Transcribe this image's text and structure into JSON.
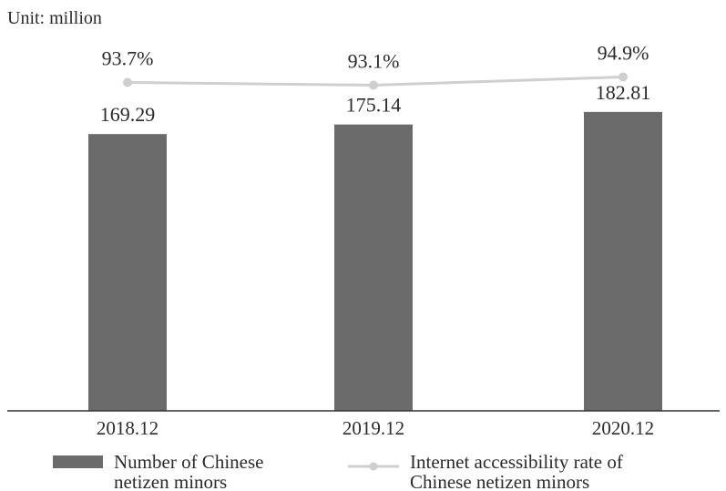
{
  "chart_data": {
    "type": "bar",
    "unit_label": "Unit: million",
    "categories": [
      "2018.12",
      "2019.12",
      "2020.12"
    ],
    "series": [
      {
        "name": "Number of Chinese netizen minors",
        "legend_lines": [
          "Number of Chinese",
          "netizen minors"
        ],
        "values": [
          169.29,
          175.14,
          182.81
        ],
        "value_labels": [
          "169.29",
          "175.14",
          "182.81"
        ],
        "type": "bar",
        "color": "#6b6b6b"
      },
      {
        "name": "Internet accessibility rate of Chinese netizen minors",
        "legend_lines": [
          "Internet accessibility rate of",
          "Chinese netizen minors"
        ],
        "values": [
          93.7,
          93.1,
          94.9
        ],
        "value_labels": [
          "93.7%",
          "93.1%",
          "94.9%"
        ],
        "type": "line",
        "color": "#cfcfcf"
      }
    ],
    "y_axis_bar": {
      "min": 0,
      "max": 190
    },
    "grid": false,
    "legend_position": "bottom"
  }
}
